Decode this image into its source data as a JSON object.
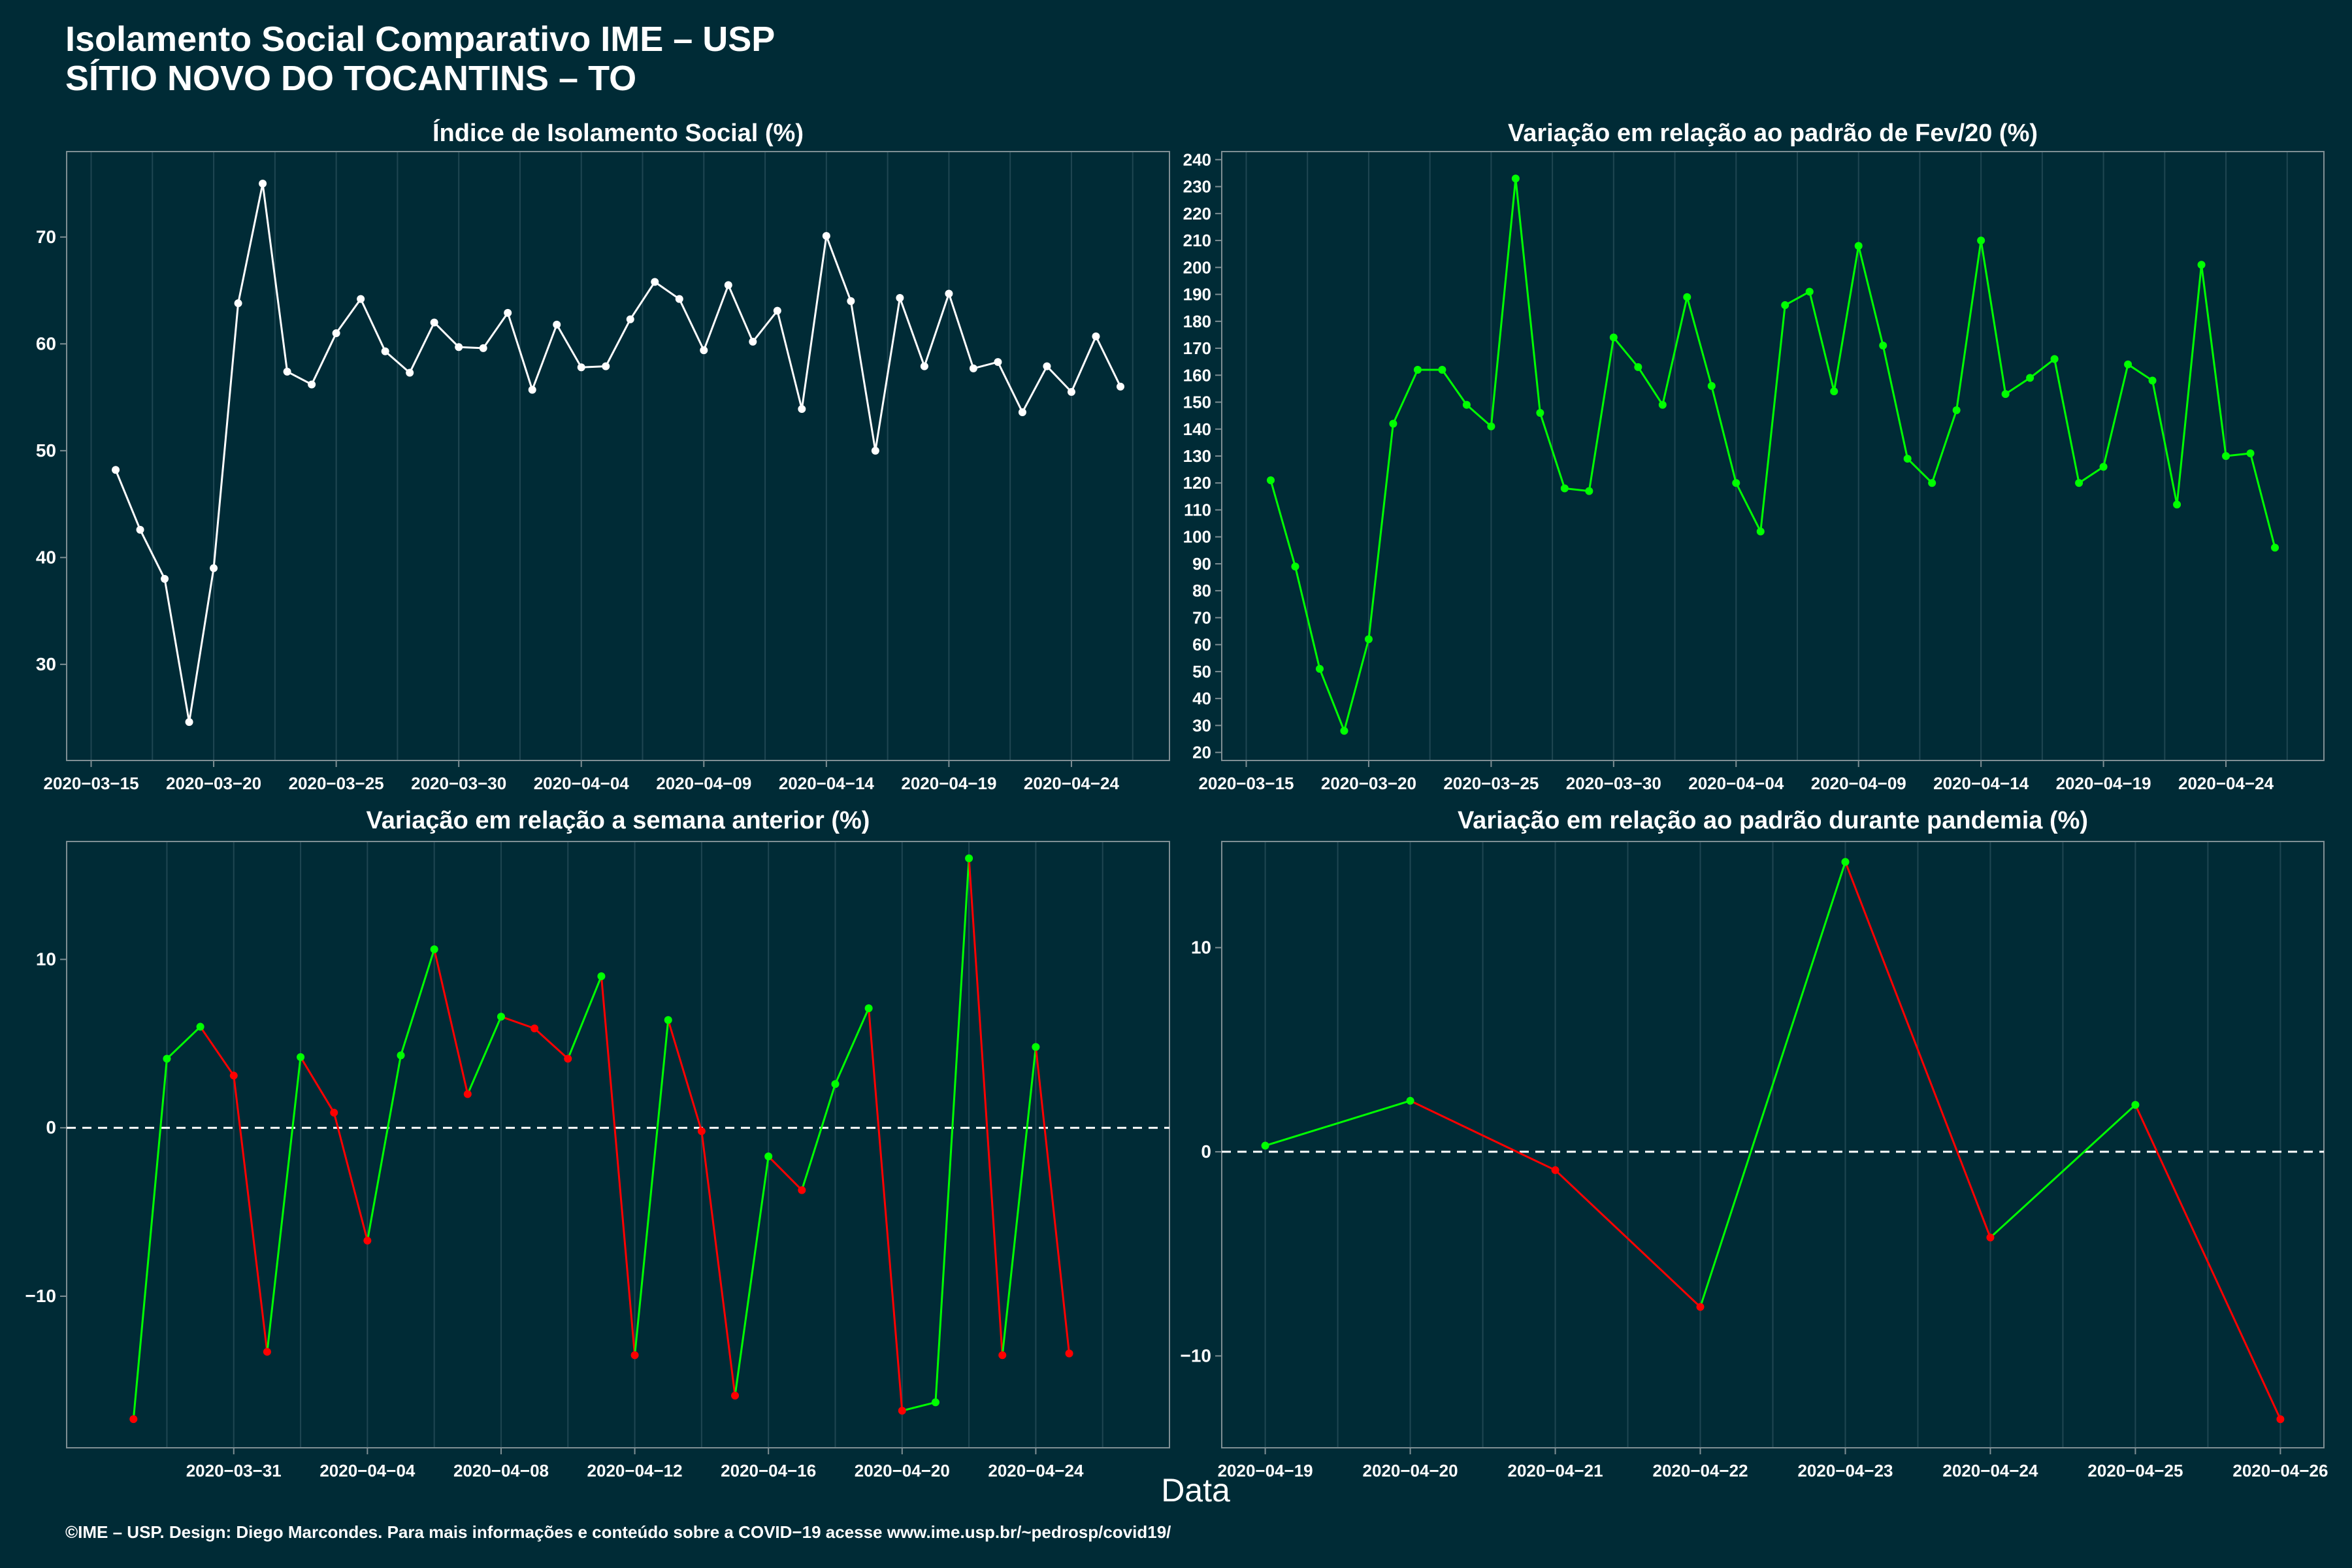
{
  "title_line1": "Isolamento Social Comparativo IME – USP",
  "title_line2": "SÍTIO NOVO DO TOCANTINS – TO",
  "xlabel": "Data",
  "footer": "©IME – USP. Design: Diego Marcondes. Para mais informações e conteúdo sobre a COVID−19 acesse www.ime.usp.br/~pedrosp/covid19/",
  "colors": {
    "background": "#002b36",
    "white": "#ffffff",
    "green": "#00ff00",
    "red": "#ff0000"
  },
  "chart_data": [
    {
      "type": "line",
      "title": "Índice de Isolamento Social (%)",
      "x_start": "2020-03-16",
      "xlim": [
        "2020-03-14",
        "2020-04-28"
      ],
      "ylim": [
        21,
        78
      ],
      "yticks": [
        30,
        40,
        50,
        60,
        70
      ],
      "xticks": [
        "2020−03−15",
        "2020−03−20",
        "2020−03−25",
        "2020−03−30",
        "2020−04−04",
        "2020−04−09",
        "2020−04−14",
        "2020−04−19",
        "2020−04−24"
      ],
      "xtick_dates": [
        "2020-03-15",
        "2020-03-20",
        "2020-03-25",
        "2020-03-30",
        "2020-04-04",
        "2020-04-09",
        "2020-04-14",
        "2020-04-19",
        "2020-04-24"
      ],
      "color": "#ffffff",
      "values": [
        48.2,
        42.6,
        38.0,
        24.6,
        39.0,
        63.8,
        75.0,
        57.4,
        56.2,
        61.0,
        64.2,
        59.3,
        57.3,
        62.0,
        59.7,
        59.6,
        62.9,
        55.7,
        61.8,
        57.8,
        57.9,
        62.3,
        65.8,
        64.2,
        59.4,
        65.5,
        60.2,
        63.1,
        53.9,
        70.1,
        64.0,
        50.0,
        64.3,
        57.9,
        64.7,
        57.7,
        58.3,
        53.6,
        57.9,
        55.5,
        60.7,
        56.0
      ]
    },
    {
      "type": "line",
      "title": "Variação em relação ao padrão de Fev/20 (%)",
      "x_start": "2020-03-16",
      "xlim": [
        "2020-03-14",
        "2020-04-28"
      ],
      "ylim": [
        17,
        243
      ],
      "yticks": [
        20,
        30,
        40,
        50,
        60,
        70,
        80,
        90,
        100,
        110,
        120,
        130,
        140,
        150,
        160,
        170,
        180,
        190,
        200,
        210,
        220,
        230,
        240
      ],
      "xticks": [
        "2020−03−15",
        "2020−03−20",
        "2020−03−25",
        "2020−03−30",
        "2020−04−04",
        "2020−04−09",
        "2020−04−14",
        "2020−04−19",
        "2020−04−24"
      ],
      "xtick_dates": [
        "2020-03-15",
        "2020-03-20",
        "2020-03-25",
        "2020-03-30",
        "2020-04-04",
        "2020-04-09",
        "2020-04-14",
        "2020-04-19",
        "2020-04-24"
      ],
      "color": "#00ff00",
      "values": [
        121,
        89,
        51,
        28,
        62,
        142,
        162,
        162,
        149,
        141,
        233,
        146,
        118,
        117,
        174,
        163,
        149,
        189,
        156,
        120,
        102,
        186,
        191,
        154,
        208,
        171,
        129,
        120,
        147,
        210,
        153,
        159,
        166,
        120,
        126,
        164,
        158,
        112,
        201,
        130,
        131,
        96
      ]
    },
    {
      "type": "line",
      "title": "Variação em relação a semana anterior (%)",
      "x_start": "2020-03-28",
      "xlim": [
        "2020-03-26",
        "2020-04-28"
      ],
      "ylim": [
        -19,
        17
      ],
      "yticks": [
        -10,
        0,
        10
      ],
      "ytick_labels": [
        "−10",
        "0",
        "10"
      ],
      "xticks": [
        "2020−03−31",
        "2020−04−04",
        "2020−04−08",
        "2020−04−12",
        "2020−04−16",
        "2020−04−20",
        "2020−04−24"
      ],
      "xtick_dates": [
        "2020-03-31",
        "2020-04-04",
        "2020-04-08",
        "2020-04-12",
        "2020-04-16",
        "2020-04-20",
        "2020-04-24"
      ],
      "zero_line": true,
      "values": [
        -17.3,
        4.1,
        6.0,
        3.1,
        -13.3,
        4.2,
        0.9,
        -6.7,
        4.3,
        10.6,
        2.0,
        6.6,
        5.9,
        4.1,
        9.0,
        -13.5,
        6.4,
        -0.2,
        -15.9,
        -1.7,
        -3.7,
        2.6,
        7.1,
        -16.8,
        -16.3,
        16.0,
        -13.5,
        4.8,
        -13.4
      ]
    },
    {
      "type": "line",
      "title": "Variação em relação ao padrão durante pandemia (%)",
      "x_start": "2020-04-19",
      "xlim": [
        "2020-04-18.7",
        "2020-04-26.3"
      ],
      "ylim": [
        -14.5,
        15.2
      ],
      "yticks": [
        -10,
        0,
        10
      ],
      "ytick_labels": [
        "−10",
        "0",
        "10"
      ],
      "xticks": [
        "2020−04−19",
        "2020−04−20",
        "2020−04−21",
        "2020−04−22",
        "2020−04−23",
        "2020−04−24",
        "2020−04−25",
        "2020−04−26"
      ],
      "xtick_dates": [
        "2020-04-19",
        "2020-04-20",
        "2020-04-21",
        "2020-04-22",
        "2020-04-23",
        "2020-04-24",
        "2020-04-25",
        "2020-04-26"
      ],
      "zero_line": true,
      "values": [
        0.3,
        2.5,
        -0.9,
        -7.6,
        14.2,
        -4.2,
        2.3,
        -13.1
      ]
    }
  ]
}
